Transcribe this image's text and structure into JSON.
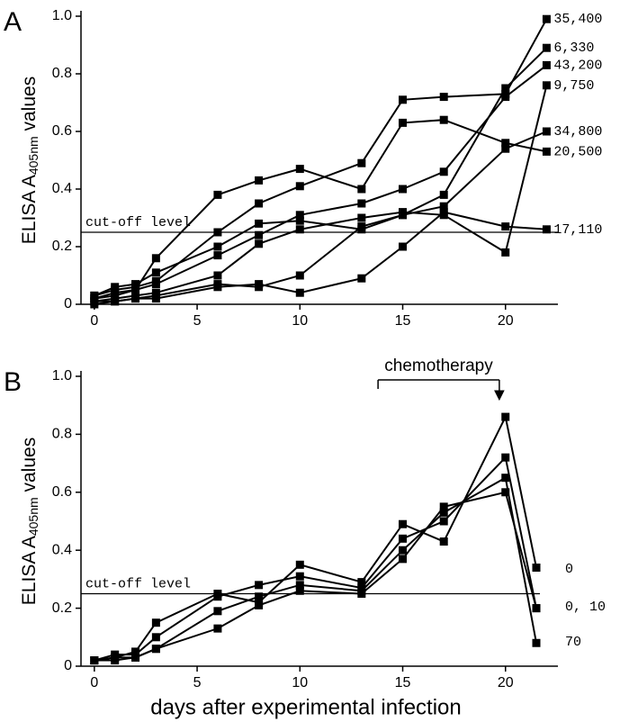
{
  "chart_data": [
    {
      "type": "line",
      "panel_label": "A",
      "ylabel": [
        "ELISA A",
        "405nm",
        " values"
      ],
      "x": [
        0,
        1,
        2,
        3,
        6,
        8,
        10,
        13,
        15,
        17,
        20,
        22
      ],
      "series": [
        {
          "name": "35,400",
          "color": "#000000",
          "values": [
            0.03,
            0.05,
            0.06,
            0.08,
            0.25,
            0.35,
            0.41,
            0.49,
            0.71,
            0.72,
            0.73,
            0.99
          ]
        },
        {
          "name": "6,330",
          "color": "#000000",
          "values": [
            0.03,
            0.06,
            0.07,
            0.11,
            0.2,
            0.28,
            0.29,
            0.26,
            0.31,
            0.38,
            0.75,
            0.89
          ]
        },
        {
          "name": "43,200",
          "color": "#000000",
          "values": [
            0.02,
            0.03,
            0.05,
            0.07,
            0.17,
            0.24,
            0.31,
            0.35,
            0.4,
            0.46,
            0.72,
            0.83
          ]
        },
        {
          "name": "9,750",
          "color": "#000000",
          "values": [
            0.01,
            0.02,
            0.03,
            0.04,
            0.1,
            0.21,
            0.26,
            0.3,
            0.32,
            0.31,
            0.18,
            0.76
          ]
        },
        {
          "name": "34,800",
          "color": "#000000",
          "values": [
            0.01,
            0.01,
            0.02,
            0.03,
            0.07,
            0.06,
            0.1,
            0.27,
            0.31,
            0.34,
            0.54,
            0.6
          ]
        },
        {
          "name": "20,500",
          "color": "#000000",
          "values": [
            0.02,
            0.04,
            0.05,
            0.16,
            0.38,
            0.43,
            0.47,
            0.4,
            0.63,
            0.64,
            0.56,
            0.53
          ]
        },
        {
          "name": "17,110",
          "color": "#000000",
          "values": [
            0.0,
            0.01,
            0.02,
            0.02,
            0.06,
            0.07,
            0.04,
            0.09,
            0.2,
            0.32,
            0.27,
            0.26
          ]
        }
      ],
      "cutoff": {
        "label": "cut-off  level",
        "value": 0.25
      },
      "xlim": [
        -0.65,
        22.55
      ],
      "ylim": [
        0,
        1
      ],
      "xticks": [
        0,
        5,
        10,
        15,
        20
      ],
      "yticks": [
        0,
        0.2,
        0.4,
        0.6,
        0.8,
        {
          "value": 1,
          "label": "1.0"
        }
      ]
    },
    {
      "type": "line",
      "panel_label": "B",
      "ylabel": [
        "ELISA A",
        "405nm",
        " values"
      ],
      "xlabel": "days after experimental infection",
      "x": [
        0,
        1,
        2,
        3,
        6,
        8,
        10,
        13,
        15,
        17,
        20,
        21.5
      ],
      "series": [
        {
          "color": "#000000",
          "values": [
            0.02,
            0.03,
            0.05,
            0.15,
            0.25,
            0.22,
            0.35,
            0.29,
            0.49,
            0.43,
            0.86,
            0.34
          ]
        },
        {
          "color": "#000000",
          "values": [
            0.02,
            0.04,
            0.04,
            0.1,
            0.24,
            0.28,
            0.31,
            0.27,
            0.44,
            0.5,
            0.72,
            0.2
          ]
        },
        {
          "color": "#000000",
          "values": [
            0.02,
            0.02,
            0.03,
            0.06,
            0.19,
            0.24,
            0.28,
            0.26,
            0.4,
            0.53,
            0.65,
            0.08
          ]
        },
        {
          "color": "#000000",
          "values": [
            0.02,
            0.03,
            0.03,
            0.06,
            0.13,
            0.21,
            0.26,
            0.25,
            0.37,
            0.55,
            0.6,
            0.2
          ]
        }
      ],
      "end_labels": [
        "0",
        "0, 10",
        "70"
      ],
      "cutoff": {
        "label": "cut-off  level",
        "value": 0.25
      },
      "chemotherapy": {
        "text": "chemotherapy",
        "x_start": 13.8,
        "x_end": 19.7
      },
      "xlim": [
        -0.65,
        22.55
      ],
      "ylim": [
        0,
        1
      ],
      "xticks": [
        0,
        5,
        10,
        15,
        20
      ],
      "yticks": [
        0,
        0.2,
        0.4,
        0.6,
        0.8,
        {
          "value": 1,
          "label": "1.0"
        }
      ]
    }
  ]
}
